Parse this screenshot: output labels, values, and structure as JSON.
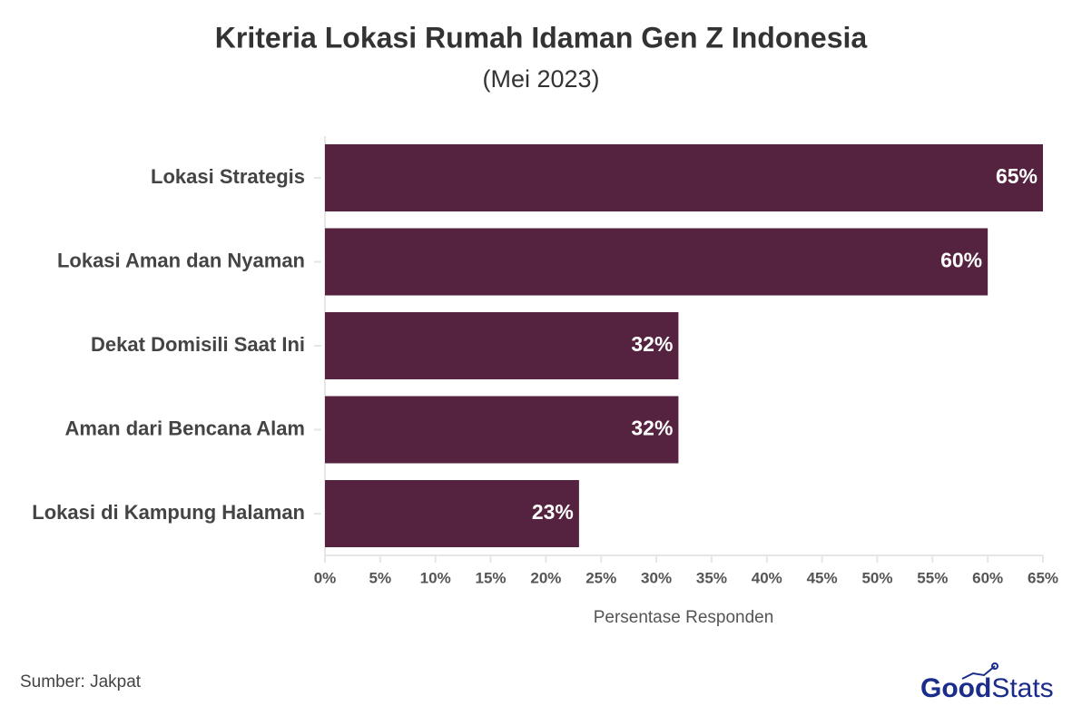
{
  "chart_data": {
    "type": "barh",
    "title": "Kriteria Lokasi Rumah Idaman Gen Z Indonesia",
    "subtitle": "(Mei 2023)",
    "categories": [
      "Lokasi Strategis",
      "Lokasi Aman dan Nyaman",
      "Dekat Domisili Saat Ini",
      "Aman dari Bencana Alam",
      "Lokasi di Kampung Halaman"
    ],
    "values": [
      65,
      60,
      32,
      32,
      23
    ],
    "value_labels": [
      "65%",
      "60%",
      "32%",
      "32%",
      "23%"
    ],
    "color": "#55223f",
    "xlim": [
      0,
      65
    ],
    "xticks": [
      {
        "value": 0,
        "label": "0%"
      },
      {
        "value": 5,
        "label": "5%"
      },
      {
        "value": 10,
        "label": "10%"
      },
      {
        "value": 15,
        "label": "15%"
      },
      {
        "value": 20,
        "label": "20%"
      },
      {
        "value": 25,
        "label": "25%"
      },
      {
        "value": 30,
        "label": "30%"
      },
      {
        "value": 35,
        "label": "35%"
      },
      {
        "value": 40,
        "label": "40%"
      },
      {
        "value": 45,
        "label": "45%"
      },
      {
        "value": 50,
        "label": "50%"
      },
      {
        "value": 55,
        "label": "55%"
      },
      {
        "value": 60,
        "label": "60%"
      },
      {
        "value": 65,
        "label": "65%"
      }
    ],
    "xlabel": "Persentase Responden",
    "source": "Sumber: Jakpat",
    "logo": {
      "bold": "Good",
      "light": "Stats"
    }
  }
}
